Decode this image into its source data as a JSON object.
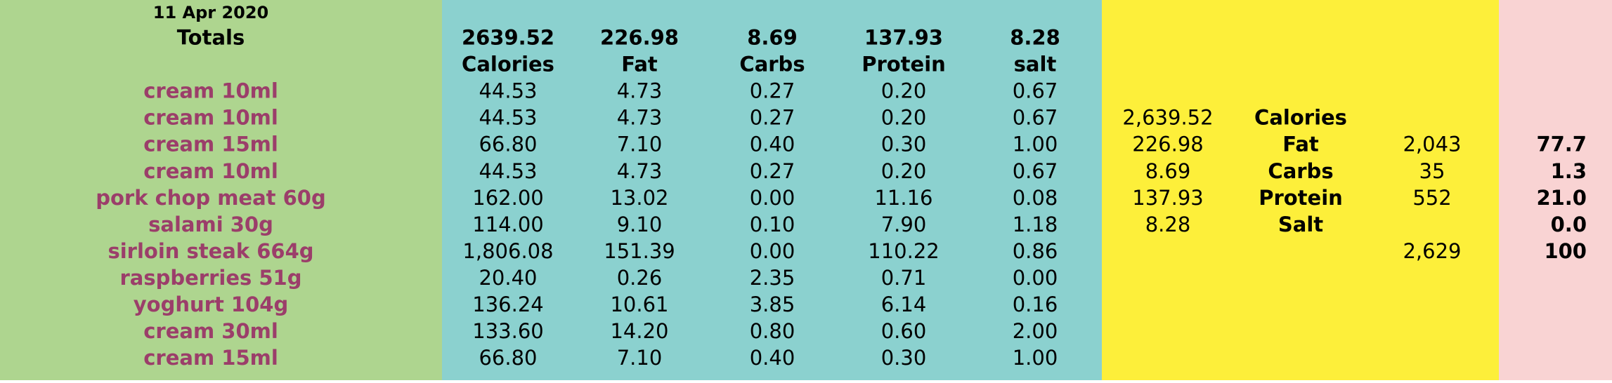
{
  "date": "11 Apr 2020",
  "totals_label": "Totals",
  "columns": [
    {
      "total": "2639.52",
      "label": "Calories"
    },
    {
      "total": "226.98",
      "label": "Fat"
    },
    {
      "total": "8.69",
      "label": "Carbs"
    },
    {
      "total": "137.93",
      "label": "Protein"
    },
    {
      "total": "8.28",
      "label": "salt"
    }
  ],
  "items": [
    {
      "name": "cream 10ml",
      "values": [
        "44.53",
        "4.73",
        "0.27",
        "0.20",
        "0.67"
      ]
    },
    {
      "name": "cream 10ml",
      "values": [
        "44.53",
        "4.73",
        "0.27",
        "0.20",
        "0.67"
      ]
    },
    {
      "name": "cream 15ml",
      "values": [
        "66.80",
        "7.10",
        "0.40",
        "0.30",
        "1.00"
      ]
    },
    {
      "name": "cream 10ml",
      "values": [
        "44.53",
        "4.73",
        "0.27",
        "0.20",
        "0.67"
      ]
    },
    {
      "name": "pork chop meat 60g",
      "values": [
        "162.00",
        "13.02",
        "0.00",
        "11.16",
        "0.08"
      ]
    },
    {
      "name": "salami 30g",
      "values": [
        "114.00",
        "9.10",
        "0.10",
        "7.90",
        "1.18"
      ]
    },
    {
      "name": "sirloin steak 664g",
      "values": [
        "1,806.08",
        "151.39",
        "0.00",
        "110.22",
        "0.86"
      ]
    },
    {
      "name": "raspberries 51g",
      "values": [
        "20.40",
        "0.26",
        "2.35",
        "0.71",
        "0.00"
      ]
    },
    {
      "name": "yoghurt 104g",
      "values": [
        "136.24",
        "10.61",
        "3.85",
        "6.14",
        "0.16"
      ]
    },
    {
      "name": "cream 30ml",
      "values": [
        "133.60",
        "14.20",
        "0.80",
        "0.60",
        "2.00"
      ]
    },
    {
      "name": "cream 15ml",
      "values": [
        "66.80",
        "7.10",
        "0.40",
        "0.30",
        "1.00"
      ]
    }
  ],
  "summary": {
    "values": [
      "2,639.52",
      "226.98",
      "8.69",
      "137.93",
      "8.28"
    ],
    "labels": [
      "Calories",
      "Fat",
      "Carbs",
      "Protein",
      "Salt"
    ],
    "energy": [
      null,
      "2,043",
      "35",
      "552",
      null,
      "2,629"
    ],
    "percent": [
      null,
      "77.7",
      "1.3",
      "21.0",
      "0.0",
      "100"
    ]
  }
}
